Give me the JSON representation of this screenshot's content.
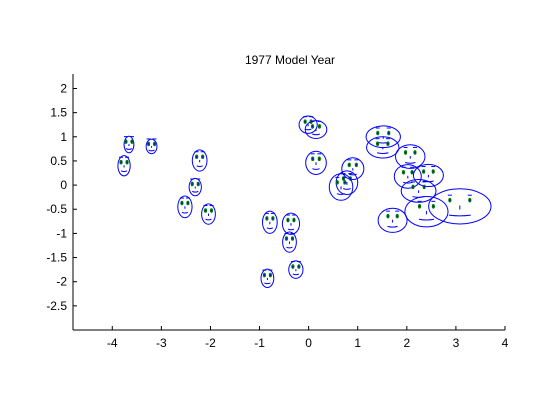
{
  "chart_data": {
    "type": "scatter",
    "title": "1977 Model Year",
    "xlabel": "",
    "ylabel": "",
    "xlim": [
      -4.8,
      4.0
    ],
    "ylim": [
      -3.0,
      2.3
    ],
    "xticks": [
      -4,
      -3,
      -2,
      -1,
      0,
      1,
      2,
      3,
      4
    ],
    "yticks": [
      2,
      1.5,
      1,
      0.5,
      0,
      -0.5,
      -1,
      -1.5,
      -2,
      -2.5
    ],
    "grid": false,
    "glyph": "chernoff-face",
    "colors": {
      "face": "#0000ff",
      "eyes": "#008000",
      "pupils": "#0000ff",
      "axes": "#000000"
    },
    "points": [
      {
        "x": -3.76,
        "y": 0.4,
        "w": 0.25,
        "h": 0.42
      },
      {
        "x": -3.66,
        "y": 0.84,
        "w": 0.2,
        "h": 0.34
      },
      {
        "x": -3.2,
        "y": 0.8,
        "w": 0.22,
        "h": 0.3
      },
      {
        "x": -2.22,
        "y": 0.51,
        "w": 0.3,
        "h": 0.44
      },
      {
        "x": -2.31,
        "y": -0.04,
        "w": 0.25,
        "h": 0.36
      },
      {
        "x": -2.52,
        "y": -0.45,
        "w": 0.29,
        "h": 0.45
      },
      {
        "x": -2.04,
        "y": -0.6,
        "w": 0.28,
        "h": 0.42
      },
      {
        "x": -0.79,
        "y": -0.77,
        "w": 0.3,
        "h": 0.46
      },
      {
        "x": -0.36,
        "y": -0.8,
        "w": 0.35,
        "h": 0.44
      },
      {
        "x": -0.39,
        "y": -1.18,
        "w": 0.28,
        "h": 0.42
      },
      {
        "x": -0.84,
        "y": -1.93,
        "w": 0.26,
        "h": 0.38
      },
      {
        "x": -0.26,
        "y": -1.75,
        "w": 0.29,
        "h": 0.36
      },
      {
        "x": -0.01,
        "y": 1.25,
        "w": 0.37,
        "h": 0.36
      },
      {
        "x": 0.15,
        "y": 1.15,
        "w": 0.44,
        "h": 0.37
      },
      {
        "x": 0.15,
        "y": 0.46,
        "w": 0.42,
        "h": 0.48
      },
      {
        "x": 0.9,
        "y": 0.34,
        "w": 0.45,
        "h": 0.45
      },
      {
        "x": 0.78,
        "y": 0.05,
        "w": 0.44,
        "h": 0.49
      },
      {
        "x": 0.66,
        "y": -0.04,
        "w": 0.48,
        "h": 0.55
      },
      {
        "x": 1.52,
        "y": 1.0,
        "w": 0.7,
        "h": 0.45
      },
      {
        "x": 1.51,
        "y": 0.78,
        "w": 0.66,
        "h": 0.44
      },
      {
        "x": 2.07,
        "y": 0.59,
        "w": 0.6,
        "h": 0.49
      },
      {
        "x": 2.02,
        "y": 0.18,
        "w": 0.55,
        "h": 0.49
      },
      {
        "x": 2.44,
        "y": 0.2,
        "w": 0.61,
        "h": 0.46
      },
      {
        "x": 2.24,
        "y": -0.12,
        "w": 0.71,
        "h": 0.47
      },
      {
        "x": 2.4,
        "y": -0.55,
        "w": 0.88,
        "h": 0.63
      },
      {
        "x": 1.71,
        "y": -0.73,
        "w": 0.59,
        "h": 0.5
      },
      {
        "x": 3.08,
        "y": -0.44,
        "w": 1.27,
        "h": 0.73
      }
    ]
  }
}
